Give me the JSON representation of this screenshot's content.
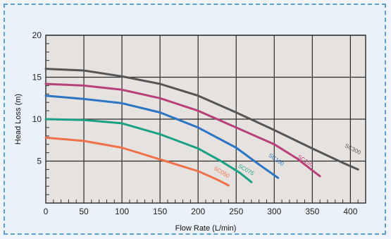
{
  "chart_data": {
    "type": "line",
    "title": "",
    "xlabel": "Flow Rate (L/min)",
    "ylabel": "Head Loss (m)",
    "xlim": [
      0,
      420
    ],
    "ylim": [
      0,
      20
    ],
    "x_ticks": [
      0,
      50,
      100,
      150,
      200,
      250,
      300,
      350,
      400
    ],
    "y_ticks": [
      5,
      10,
      15,
      20
    ],
    "grid": true,
    "legend": "inline labels at curve ends",
    "series": [
      {
        "name": "SC300",
        "color": "#555555",
        "points": [
          [
            0,
            16
          ],
          [
            50,
            15.8
          ],
          [
            100,
            15.1
          ],
          [
            150,
            14.2
          ],
          [
            200,
            12.8
          ],
          [
            250,
            10.8
          ],
          [
            300,
            8.7
          ],
          [
            350,
            6.5
          ],
          [
            390,
            4.8
          ],
          [
            410,
            4
          ]
        ]
      },
      {
        "name": "SC150",
        "color": "#b8407a",
        "points": [
          [
            0,
            14.2
          ],
          [
            50,
            14
          ],
          [
            100,
            13.5
          ],
          [
            150,
            12.5
          ],
          [
            200,
            11
          ],
          [
            250,
            9
          ],
          [
            300,
            7
          ],
          [
            330,
            5.3
          ],
          [
            360,
            3.2
          ]
        ]
      },
      {
        "name": "SC100",
        "color": "#2c74c4",
        "points": [
          [
            0,
            12.8
          ],
          [
            50,
            12.4
          ],
          [
            100,
            11.9
          ],
          [
            150,
            10.8
          ],
          [
            200,
            9
          ],
          [
            250,
            6.6
          ],
          [
            280,
            4.6
          ],
          [
            305,
            3
          ]
        ]
      },
      {
        "name": "SC075",
        "color": "#1aa085",
        "points": [
          [
            0,
            10
          ],
          [
            50,
            9.9
          ],
          [
            100,
            9.5
          ],
          [
            150,
            8.2
          ],
          [
            200,
            6.5
          ],
          [
            230,
            5
          ],
          [
            255,
            3.6
          ],
          [
            270,
            2.5
          ]
        ]
      },
      {
        "name": "SC050",
        "color": "#f0704a",
        "points": [
          [
            0,
            7.8
          ],
          [
            50,
            7.4
          ],
          [
            100,
            6.6
          ],
          [
            150,
            5.2
          ],
          [
            200,
            3.8
          ],
          [
            225,
            2.8
          ],
          [
            240,
            2.1
          ]
        ]
      }
    ],
    "labels": [
      {
        "series": "SC300",
        "text": "SC300",
        "x": 392,
        "y": 6.7,
        "angle": 27
      },
      {
        "series": "SC150",
        "text": "SC150",
        "x": 330,
        "y": 5.4,
        "angle": 32
      },
      {
        "series": "SC100",
        "text": "SC100",
        "x": 292,
        "y": 5.6,
        "angle": 35
      },
      {
        "series": "SC075",
        "text": "SC075",
        "x": 252,
        "y": 4.3,
        "angle": 30
      },
      {
        "series": "SC050",
        "text": "SC050",
        "x": 220,
        "y": 4.0,
        "angle": 30
      }
    ]
  }
}
